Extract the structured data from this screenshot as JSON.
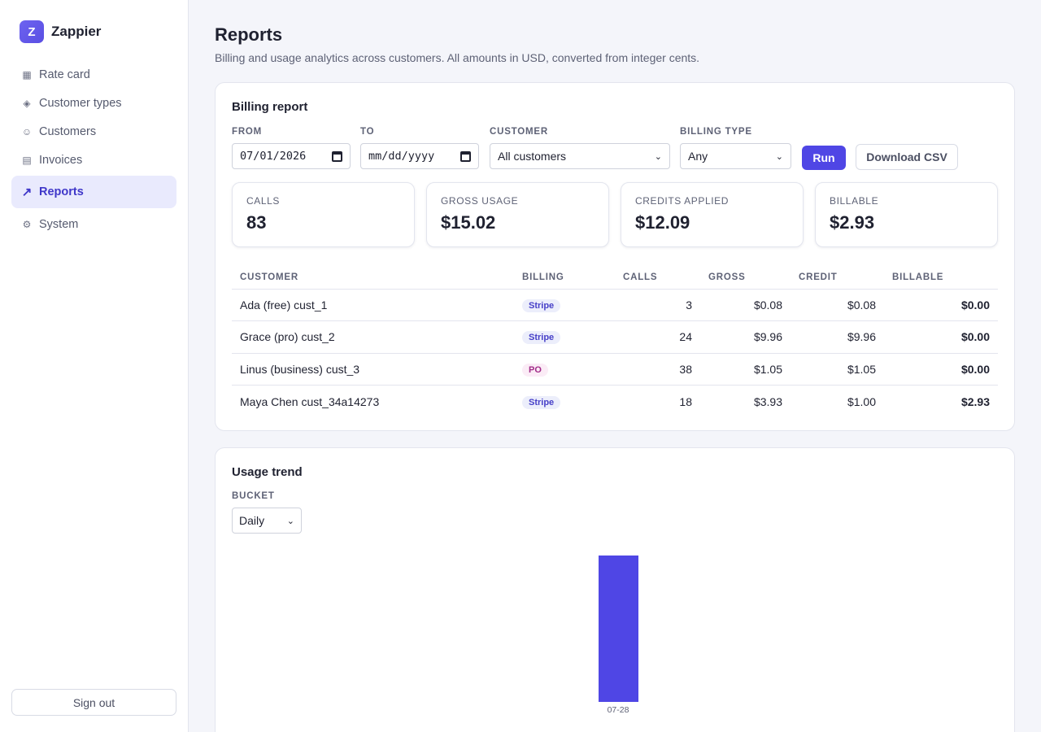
{
  "brand": {
    "logo_letter": "Z",
    "name": "Zappier"
  },
  "nav": [
    {
      "icon": "grid-icon",
      "glyph": "▦",
      "label": "Rate card",
      "active": false
    },
    {
      "icon": "diamond-icon",
      "glyph": "◈",
      "label": "Customer types",
      "active": false
    },
    {
      "icon": "smiley-icon",
      "glyph": "☺",
      "label": "Customers",
      "active": false
    },
    {
      "icon": "invoice-icon",
      "glyph": "▤",
      "label": "Invoices",
      "active": false
    },
    {
      "icon": "trend-icon",
      "glyph": "↗",
      "label": "Reports",
      "active": true
    },
    {
      "icon": "gear-icon",
      "glyph": "⚙",
      "label": "System",
      "active": false
    }
  ],
  "sign_out": "Sign out",
  "page": {
    "title": "Reports",
    "subtitle": "Billing and usage analytics across customers. All amounts in USD, converted from integer cents."
  },
  "billing": {
    "title": "Billing report",
    "from": {
      "label": "FROM",
      "value": "07/01/2026"
    },
    "to": {
      "label": "TO",
      "placeholder": "mm/dd/yyyy"
    },
    "customer": {
      "label": "CUSTOMER",
      "value": "All customers"
    },
    "billing_type": {
      "label": "BILLING TYPE",
      "value": "Any"
    },
    "run": "Run",
    "download": "Download CSV",
    "kpis": [
      {
        "label": "CALLS",
        "value": "83"
      },
      {
        "label": "GROSS USAGE",
        "value": "$15.02"
      },
      {
        "label": "CREDITS APPLIED",
        "value": "$12.09"
      },
      {
        "label": "BILLABLE",
        "value": "$2.93"
      }
    ],
    "table": {
      "headers": [
        "CUSTOMER",
        "BILLING",
        "CALLS",
        "GROSS",
        "CREDIT",
        "BILLABLE"
      ],
      "rows": [
        {
          "customer": "Ada (free) cust_1",
          "billing": "Stripe",
          "calls": "3",
          "gross": "$0.08",
          "credit": "$0.08",
          "billable": "$0.00"
        },
        {
          "customer": "Grace (pro) cust_2",
          "billing": "Stripe",
          "calls": "24",
          "gross": "$9.96",
          "credit": "$9.96",
          "billable": "$0.00"
        },
        {
          "customer": "Linus (business) cust_3",
          "billing": "PO",
          "calls": "38",
          "gross": "$1.05",
          "credit": "$1.05",
          "billable": "$0.00"
        },
        {
          "customer": "Maya Chen cust_34a14273",
          "billing": "Stripe",
          "calls": "18",
          "gross": "$3.93",
          "credit": "$1.00",
          "billable": "$2.93"
        }
      ]
    }
  },
  "usage": {
    "title": "Usage trend",
    "bucket": {
      "label": "BUCKET",
      "value": "Daily"
    }
  },
  "chart_data": {
    "type": "bar",
    "categories": [
      "07-28"
    ],
    "values": [
      83
    ],
    "color": "#4f46e5",
    "title": "",
    "xlabel": "",
    "ylabel": "",
    "ylim": [
      0,
      83
    ]
  }
}
